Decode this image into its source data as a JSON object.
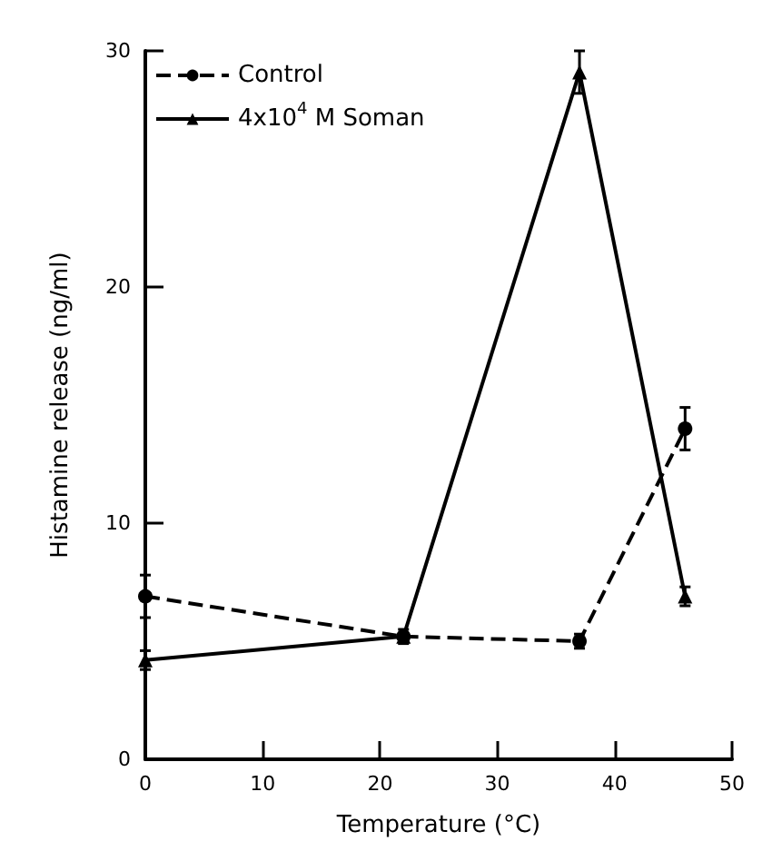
{
  "chart_data": {
    "type": "line",
    "xlabel": "Temperature (°C)",
    "ylabel": "Histamine release (ng/ml)",
    "x": [
      0,
      22,
      37,
      46
    ],
    "xlim": [
      0,
      50
    ],
    "xticks": [
      0,
      10,
      20,
      30,
      40,
      50
    ],
    "ylim": [
      0,
      30
    ],
    "yticks": [
      0,
      10,
      20,
      30
    ],
    "grid": false,
    "legend": "top left",
    "series": [
      {
        "name": "Control",
        "color": "#000000",
        "marker": "circle",
        "line_style": "dashed",
        "values": [
          6.9,
          5.2,
          5.0,
          14.0
        ],
        "errors": [
          0.9,
          0.3,
          0.3,
          0.9
        ]
      },
      {
        "name": "4x10$^{4}$ M Soman",
        "color": "#000000",
        "marker": "triangle",
        "line_style": "solid",
        "values": [
          4.2,
          5.2,
          29.1,
          6.9
        ],
        "errors": [
          0.4,
          null,
          0.9,
          0.4
        ]
      }
    ]
  }
}
